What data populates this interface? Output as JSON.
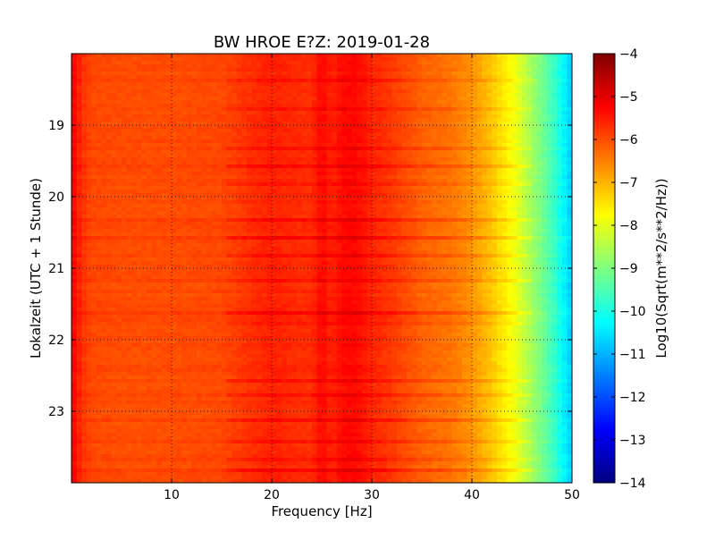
{
  "chart_data": {
    "type": "heatmap",
    "title": "BW HROE E?Z: 2019-01-28",
    "xlabel": "Frequency [Hz]",
    "ylabel": "Lokalzeit (UTC + 1 Stunde)",
    "xlim": [
      0,
      50
    ],
    "ylim_hours": [
      18,
      24
    ],
    "x_ticks": [
      10,
      20,
      30,
      40,
      50
    ],
    "y_ticks": [
      19,
      20,
      21,
      22,
      23
    ],
    "y_axis_inverted": true,
    "grid": true,
    "colorbar": {
      "label": "Log10(Sqrt(m**2/s**2/Hz))",
      "range": [
        -14,
        -4
      ],
      "ticks": [
        -4,
        -5,
        -6,
        -7,
        -8,
        -9,
        -10,
        -11,
        -12,
        -13,
        -14
      ],
      "colormap": "jet"
    },
    "spectrum_profile": {
      "frequency_hz": [
        0,
        1,
        2,
        5,
        10,
        15,
        18,
        20,
        22,
        24,
        25,
        26,
        27,
        28,
        29,
        30,
        32,
        35,
        38,
        40,
        41,
        42,
        43,
        44,
        45,
        46,
        47,
        48,
        49,
        50
      ],
      "log10_amplitude": [
        -5.2,
        -5.7,
        -5.95,
        -6.0,
        -6.0,
        -5.95,
        -5.7,
        -5.55,
        -5.65,
        -5.7,
        -5.3,
        -5.6,
        -5.35,
        -5.3,
        -5.4,
        -5.6,
        -5.8,
        -6.2,
        -6.4,
        -6.7,
        -6.95,
        -7.2,
        -7.5,
        -7.8,
        -8.2,
        -8.7,
        -9.1,
        -9.6,
        -10.2,
        -10.8
      ]
    },
    "horizontal_bands": [
      {
        "hour": 18.35,
        "delta": 0.2
      },
      {
        "hour": 18.75,
        "delta": 0.25
      },
      {
        "hour": 19.3,
        "delta": 0.3
      },
      {
        "hour": 19.55,
        "delta": 0.35
      },
      {
        "hour": 19.8,
        "delta": 0.25
      },
      {
        "hour": 20.3,
        "delta": 0.3
      },
      {
        "hour": 20.55,
        "delta": 0.35
      },
      {
        "hour": 20.8,
        "delta": 0.25
      },
      {
        "hour": 21.15,
        "delta": 0.2
      },
      {
        "hour": 21.6,
        "delta": 0.35
      },
      {
        "hour": 21.75,
        "delta": 0.2
      },
      {
        "hour": 22.55,
        "delta": 0.3
      },
      {
        "hour": 22.75,
        "delta": 0.25
      },
      {
        "hour": 23.1,
        "delta": 0.3
      },
      {
        "hour": 23.4,
        "delta": 0.25
      },
      {
        "hour": 23.65,
        "delta": 0.2
      },
      {
        "hour": 23.8,
        "delta": 0.35
      }
    ]
  }
}
